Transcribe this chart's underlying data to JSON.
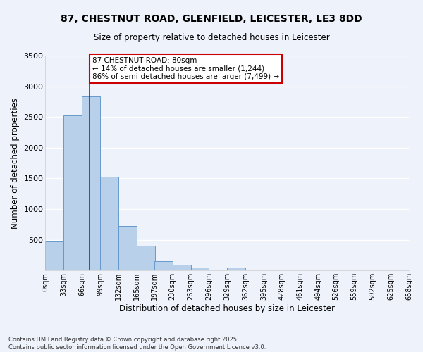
{
  "title_line1": "87, CHESTNUT ROAD, GLENFIELD, LEICESTER, LE3 8DD",
  "title_line2": "Size of property relative to detached houses in Leicester",
  "xlabel": "Distribution of detached houses by size in Leicester",
  "ylabel": "Number of detached properties",
  "bin_labels": [
    "0sqm",
    "33sqm",
    "66sqm",
    "99sqm",
    "132sqm",
    "165sqm",
    "197sqm",
    "230sqm",
    "263sqm",
    "296sqm",
    "329sqm",
    "362sqm",
    "395sqm",
    "428sqm",
    "461sqm",
    "494sqm",
    "526sqm",
    "559sqm",
    "592sqm",
    "625sqm",
    "658sqm"
  ],
  "bar_values": [
    470,
    2520,
    2840,
    1530,
    720,
    400,
    155,
    90,
    45,
    0,
    50,
    0,
    0,
    0,
    0,
    0,
    0,
    0,
    0,
    0
  ],
  "bar_color": "#b8d0ea",
  "bar_edge_color": "#6699cc",
  "bg_color": "#eef2fb",
  "grid_color": "#ffffff",
  "vline_x": 80,
  "vline_color": "#cc0000",
  "annotation_text": "87 CHESTNUT ROAD: 80sqm\n← 14% of detached houses are smaller (1,244)\n86% of semi-detached houses are larger (7,499) →",
  "annotation_box_color": "#ffffff",
  "annotation_box_edge": "#cc0000",
  "footnote": "Contains HM Land Registry data © Crown copyright and database right 2025.\nContains public sector information licensed under the Open Government Licence v3.0.",
  "ylim": [
    0,
    3500
  ],
  "yticks": [
    0,
    500,
    1000,
    1500,
    2000,
    2500,
    3000,
    3500
  ],
  "bin_width": 33,
  "bin_starts": [
    0,
    33,
    66,
    99,
    132,
    165,
    197,
    230,
    263,
    296,
    329,
    362,
    395,
    428,
    461,
    494,
    526,
    559,
    592,
    625
  ],
  "xlim": [
    0,
    658
  ]
}
